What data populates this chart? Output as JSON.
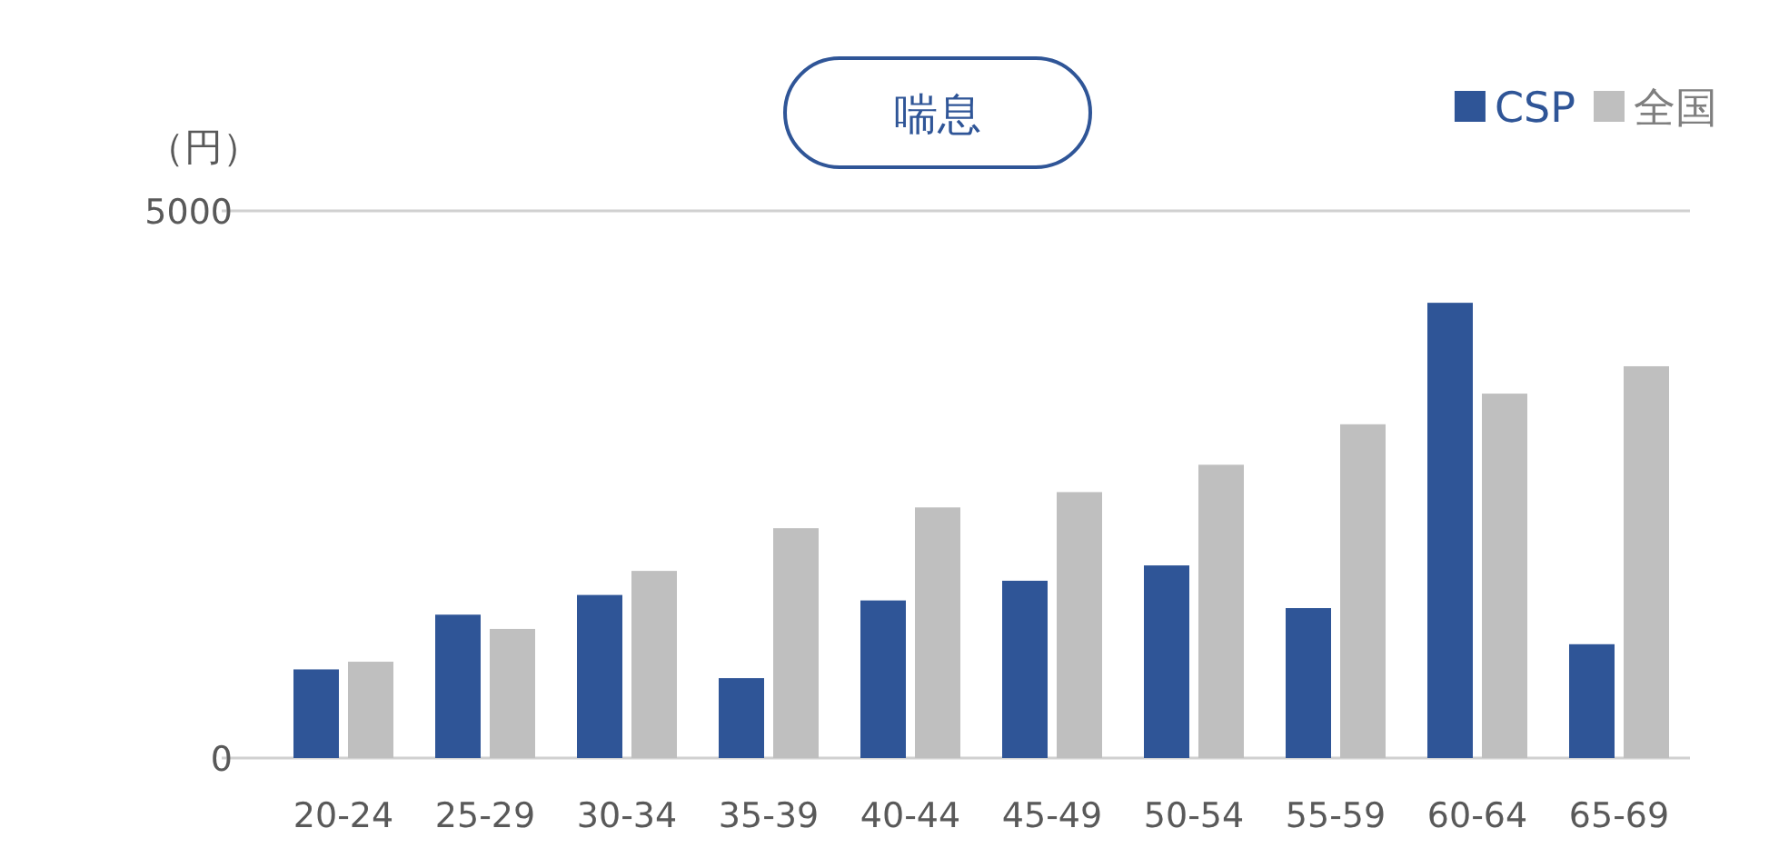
{
  "chart_data": {
    "type": "bar",
    "title": "喘息",
    "ylabel": "（円）",
    "categories": [
      "20-24",
      "25-29",
      "30-34",
      "35-39",
      "40-44",
      "45-49",
      "50-54",
      "55-59",
      "60-64",
      "65-69"
    ],
    "series": [
      {
        "name": "CSP",
        "color": "#2f5597",
        "values": [
          810,
          1310,
          1490,
          730,
          1440,
          1620,
          1760,
          1370,
          4160,
          1040
        ]
      },
      {
        "name": "全国",
        "color": "#bfbfbf",
        "values": [
          880,
          1180,
          1710,
          2100,
          2290,
          2430,
          2680,
          3050,
          3330,
          3580
        ]
      }
    ],
    "ylim": [
      0,
      5000
    ],
    "yticks": [
      0,
      5000
    ],
    "legend": "top right"
  }
}
